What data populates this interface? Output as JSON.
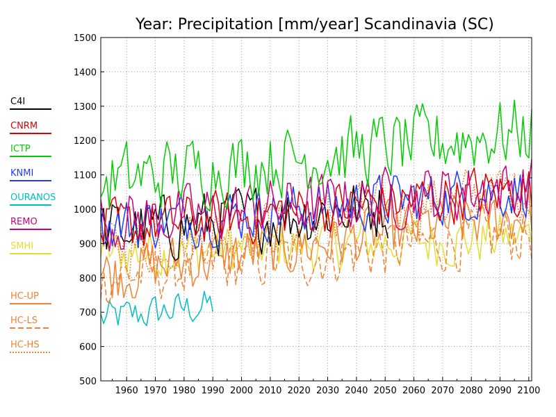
{
  "chart_data": {
    "type": "line",
    "title": "Year: Precipitation [mm/year] Scandinavia (SC)",
    "xlabel": "",
    "ylabel": "",
    "xlim": [
      1951,
      2101
    ],
    "ylim": [
      500,
      1500
    ],
    "x_ticks": [
      1960,
      1970,
      1980,
      1990,
      2000,
      2010,
      2020,
      2030,
      2040,
      2050,
      2060,
      2070,
      2080,
      2090,
      2100
    ],
    "y_ticks": [
      500,
      600,
      700,
      800,
      900,
      1000,
      1100,
      1200,
      1300,
      1400,
      1500
    ],
    "grid": true,
    "legend_position": "left",
    "series": [
      {
        "name": "C4I",
        "color": "#000000",
        "dash": "solid",
        "x": [
          1951,
          2051
        ],
        "approx_mean": [
          930,
          1010
        ],
        "approx_amplitude": 110
      },
      {
        "name": "CNRM",
        "color": "#dd0000",
        "dash": "solid",
        "x": [
          1951,
          2101
        ],
        "approx_mean": [
          940,
          1060
        ],
        "approx_amplitude": 90
      },
      {
        "name": "ICTP",
        "color": "#00cc00",
        "dash": "solid",
        "x": [
          1951,
          2101
        ],
        "approx_mean": [
          1080,
          1230
        ],
        "approx_amplitude": 120
      },
      {
        "name": "KNMI",
        "color": "#1e3cff",
        "dash": "solid",
        "x": [
          1951,
          2101
        ],
        "approx_mean": [
          950,
          1060
        ],
        "approx_amplitude": 90
      },
      {
        "name": "OURANOS",
        "color": "#00c0c0",
        "dash": "solid",
        "x": [
          1951,
          1990
        ],
        "approx_mean": [
          680,
          720
        ],
        "approx_amplitude": 60
      },
      {
        "name": "REMO",
        "color": "#cc0077",
        "dash": "solid",
        "x": [
          1951,
          2101
        ],
        "approx_mean": [
          960,
          1070
        ],
        "approx_amplitude": 100
      },
      {
        "name": "SMHI",
        "color": "#e6dc32",
        "dash": "solid",
        "x": [
          1951,
          2101
        ],
        "approx_mean": [
          870,
          920
        ],
        "approx_amplitude": 90
      },
      {
        "name": "HC-UP",
        "color": "#f08232",
        "dash": "solid",
        "x": [
          1951,
          2101
        ],
        "approx_mean": [
          810,
          990
        ],
        "approx_amplitude": 100
      },
      {
        "name": "HC-LS",
        "color": "#f08232",
        "dash": "dashed",
        "x": [
          1951,
          2101
        ],
        "approx_mean": [
          800,
          930
        ],
        "approx_amplitude": 100
      },
      {
        "name": "HC-HS",
        "color": "#f08232",
        "dash": "dotted",
        "x": [
          1951,
          2101
        ],
        "approx_mean": [
          880,
          1060
        ],
        "approx_amplitude": 100
      }
    ]
  }
}
